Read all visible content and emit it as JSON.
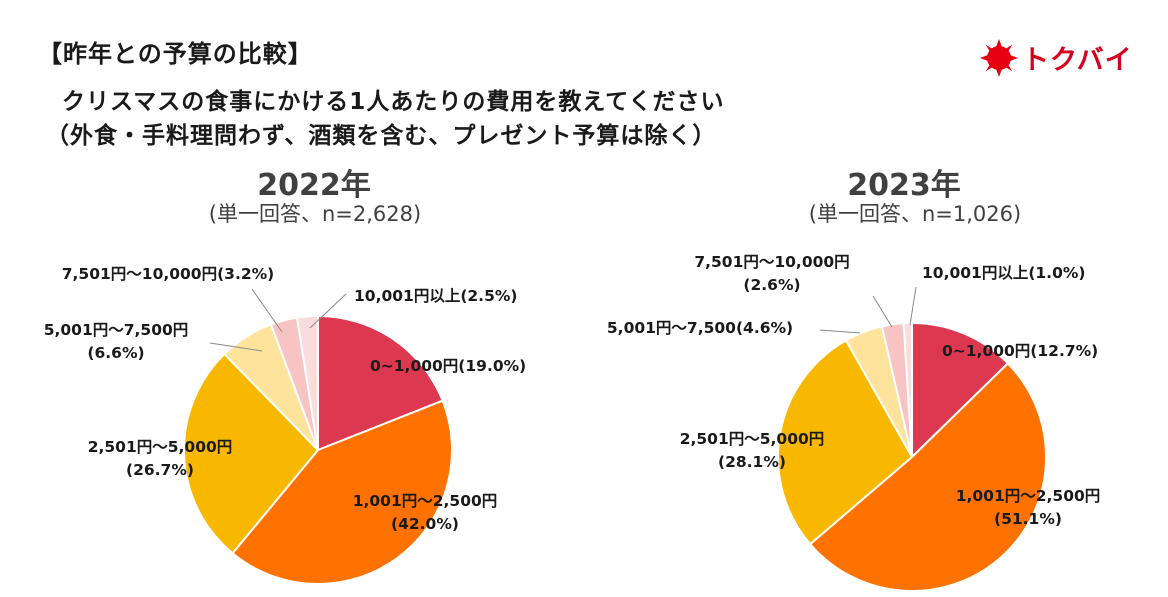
{
  "header": {
    "section_title": "【昨年との予算の比較】",
    "question_line1": "クリスマスの食事にかける1人あたりの費用を教えてください",
    "question_line2": "（外食・手料理問わず、酒類を含む、プレゼント予算は除く）"
  },
  "logo": {
    "text": "トクバイ",
    "color": "#d7001c"
  },
  "colors": {
    "slice_0_1000": "#dc3950",
    "slice_1001_2500": "#ff7200",
    "slice_2501_5000": "#f8b800",
    "slice_5001_7500": "#fde39b",
    "slice_7501_10000": "#f8c3c3",
    "slice_10001_plus": "#fbdcdc"
  },
  "chart_data": [
    {
      "type": "pie",
      "title": "2022年",
      "subtitle": "(単一回答、n=2,628)",
      "slices": [
        {
          "category": "0~1,000円",
          "value": 19.0,
          "label": "0~1,000円(19.0%)"
        },
        {
          "category": "1,001円～2,500円",
          "value": 42.0,
          "label_lines": [
            "1,001円～2,500円",
            "(42.0%)"
          ]
        },
        {
          "category": "2,501円～5,000円",
          "value": 26.7,
          "label_lines": [
            "2,501円～5,000円",
            "(26.7%)"
          ]
        },
        {
          "category": "5,001円～7,500円",
          "value": 6.6,
          "label_lines": [
            "5,001円～7,500円",
            "(6.6%)"
          ]
        },
        {
          "category": "7,501円～10,000円",
          "value": 3.2,
          "label": "7,501円～10,000円(3.2%)"
        },
        {
          "category": "10,001円以上",
          "value": 2.5,
          "label": "10,001円以上(2.5%)"
        }
      ]
    },
    {
      "type": "pie",
      "title": "2023年",
      "subtitle": "(単一回答、n=1,026)",
      "slices": [
        {
          "category": "0~1,000円",
          "value": 12.7,
          "label": "0~1,000円(12.7%)"
        },
        {
          "category": "1,001円～2,500円",
          "value": 51.1,
          "label_lines": [
            "1,001円～2,500円",
            "(51.1%)"
          ]
        },
        {
          "category": "2,501円～5,000円",
          "value": 28.1,
          "label_lines": [
            "2,501円～5,000円",
            "(28.1%)"
          ]
        },
        {
          "category": "5,001円～7,500",
          "value": 4.6,
          "label": "5,001円～7,500(4.6%)"
        },
        {
          "category": "7,501円～10,000円",
          "value": 2.6,
          "label_lines": [
            "7,501円～10,000円",
            "(2.6%)"
          ]
        },
        {
          "category": "10,001円以上",
          "value": 1.0,
          "label": "10,001円以上(1.0%)"
        }
      ]
    }
  ]
}
